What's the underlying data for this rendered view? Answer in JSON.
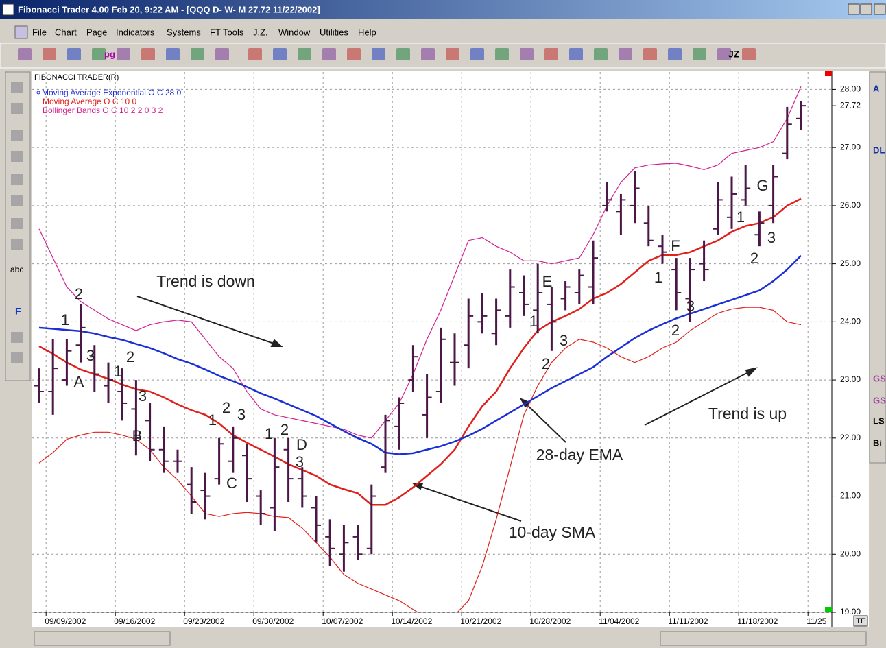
{
  "window": {
    "title": "Fibonacci Trader 4.00 Feb 20,  9:22 AM - [QQQ D- W- M 27.72 11/22/2002]",
    "menu": [
      "File",
      "Chart",
      "Page",
      "Indicators",
      "Systems",
      "FT Tools",
      "J.Z.",
      "Window",
      "Utilities",
      "Help"
    ],
    "toolbar_texts": [
      "pg",
      "JZ"
    ],
    "left_tools": [
      "abc",
      "F"
    ],
    "right_tools": [
      "A",
      "DL",
      "GS",
      "GS",
      "LS",
      "Bi"
    ],
    "corner_label": "TF"
  },
  "chart_data": {
    "type": "ohlc",
    "title": "FIBONACCI TRADER(R)",
    "categories": [
      null,
      "09/09/2002",
      null,
      null,
      null,
      null,
      "09/16/2002",
      null,
      null,
      null,
      null,
      "09/23/2002",
      null,
      null,
      null,
      null,
      "09/30/2002",
      null,
      null,
      null,
      null,
      "10/07/2002",
      null,
      null,
      null,
      null,
      "10/14/2002",
      null,
      null,
      null,
      null,
      "10/21/2002",
      null,
      null,
      null,
      null,
      "10/28/2002",
      null,
      null,
      null,
      null,
      "11/04/2002",
      null,
      null,
      null,
      null,
      "11/11/2002",
      null,
      null,
      null,
      null,
      "11/18/2002",
      null,
      null,
      null,
      null,
      "11/25"
    ],
    "open": [
      22.9,
      22.8,
      23.0,
      23.6,
      23.4,
      22.9,
      22.8,
      22.5,
      22.3,
      21.8,
      21.6,
      21.2,
      21.1,
      21.3,
      21.6,
      21.7,
      21.0,
      20.8,
      21.8,
      21.3,
      20.8,
      20.3,
      20.0,
      20.3,
      20.1,
      21.5,
      22.2,
      23.0,
      22.4,
      22.8,
      23.3,
      23.6,
      24.0,
      23.8,
      24.1,
      24.5,
      24.2,
      24.3,
      24.4,
      24.5,
      24.6,
      26.0,
      25.9,
      26.0,
      25.7,
      25.3,
      24.9,
      24.4,
      25.0,
      25.6,
      25.8,
      26.1,
      25.5,
      26.0,
      26.9,
      27.5,
      null
    ],
    "high": [
      23.2,
      23.7,
      23.7,
      24.3,
      23.6,
      23.3,
      23.2,
      23.0,
      22.6,
      22.2,
      21.8,
      21.5,
      21.4,
      22.0,
      22.2,
      21.9,
      21.1,
      22.0,
      22.0,
      21.5,
      21.0,
      20.6,
      20.5,
      20.5,
      21.2,
      22.4,
      22.7,
      23.6,
      23.1,
      23.9,
      23.8,
      24.4,
      24.5,
      24.4,
      24.9,
      24.8,
      25.0,
      24.6,
      24.7,
      24.9,
      25.4,
      26.4,
      26.2,
      26.6,
      26.0,
      25.5,
      25.1,
      25.1,
      25.4,
      26.4,
      26.5,
      26.7,
      25.9,
      26.7,
      27.7,
      27.8,
      null
    ],
    "low": [
      22.6,
      22.4,
      22.9,
      23.3,
      22.8,
      22.6,
      22.3,
      21.7,
      21.6,
      21.4,
      21.4,
      20.7,
      20.6,
      21.2,
      21.4,
      20.9,
      20.5,
      20.4,
      20.9,
      20.8,
      20.2,
      19.8,
      19.7,
      19.9,
      20.0,
      21.4,
      21.8,
      22.8,
      22.0,
      22.6,
      22.9,
      23.2,
      23.8,
      23.6,
      23.9,
      24.1,
      23.8,
      23.5,
      24.2,
      24.3,
      24.3,
      25.9,
      25.5,
      25.7,
      25.3,
      25.0,
      24.2,
      24.0,
      24.7,
      25.5,
      25.6,
      26.0,
      25.3,
      25.7,
      26.8,
      27.3,
      null
    ],
    "close": [
      22.8,
      23.2,
      23.5,
      23.9,
      23.1,
      23.0,
      22.6,
      22.0,
      21.8,
      21.6,
      21.6,
      20.9,
      21.0,
      21.9,
      22.0,
      21.3,
      20.7,
      21.5,
      21.3,
      21.0,
      20.5,
      20.1,
      20.2,
      20.0,
      21.0,
      22.3,
      22.6,
      23.4,
      22.7,
      23.7,
      23.3,
      24.1,
      24.1,
      24.2,
      24.6,
      24.3,
      24.5,
      24.0,
      24.6,
      24.8,
      25.1,
      26.1,
      26.1,
      26.3,
      25.4,
      25.2,
      24.5,
      24.9,
      24.9,
      26.1,
      26.2,
      26.3,
      25.7,
      26.5,
      27.4,
      27.72,
      null
    ],
    "bar_color": "#4a1747",
    "series": [
      {
        "name": "Moving Average Exponential O C 28 0",
        "color": "#1a2fd6",
        "values": [
          23.9,
          23.88,
          23.86,
          23.84,
          23.8,
          23.74,
          23.69,
          23.62,
          23.55,
          23.46,
          23.36,
          23.28,
          23.18,
          23.07,
          22.98,
          22.88,
          22.77,
          22.68,
          22.58,
          22.48,
          22.38,
          22.25,
          22.12,
          22.0,
          21.9,
          21.75,
          21.72,
          21.74,
          21.8,
          21.86,
          21.94,
          22.04,
          22.16,
          22.3,
          22.44,
          22.58,
          22.72,
          22.86,
          22.98,
          23.1,
          23.22,
          23.4,
          23.56,
          23.72,
          23.85,
          23.96,
          24.06,
          24.14,
          24.22,
          24.3,
          24.38,
          24.46,
          24.54,
          24.7,
          24.9,
          25.14,
          null
        ]
      },
      {
        "name": "Moving Average O C 10 0",
        "color": "#e0201b",
        "values": [
          23.58,
          23.45,
          23.3,
          23.18,
          23.1,
          23.02,
          22.92,
          22.84,
          22.8,
          22.7,
          22.58,
          22.48,
          22.4,
          22.25,
          22.05,
          21.92,
          21.8,
          21.68,
          21.55,
          21.45,
          21.35,
          21.2,
          21.12,
          21.05,
          20.85,
          20.85,
          20.98,
          21.15,
          21.35,
          21.55,
          21.8,
          22.2,
          22.55,
          22.8,
          23.2,
          23.55,
          23.85,
          24.0,
          24.1,
          24.22,
          24.4,
          24.5,
          24.65,
          24.85,
          25.05,
          25.15,
          25.15,
          25.2,
          25.3,
          25.4,
          25.55,
          25.65,
          25.7,
          25.8,
          26.0,
          26.12,
          null
        ]
      },
      {
        "name": "Bollinger Bands O C 10 2 2 0 3 2",
        "color": "#d4208f",
        "lower_color": "#e0201b",
        "upper": [
          25.6,
          25.1,
          24.6,
          24.35,
          24.2,
          24.05,
          23.95,
          23.85,
          23.95,
          24.0,
          24.03,
          24.0,
          23.7,
          23.4,
          23.2,
          22.8,
          22.5,
          22.4,
          22.35,
          22.3,
          22.25,
          22.2,
          22.15,
          22.05,
          22.0,
          22.3,
          22.6,
          23.1,
          23.7,
          24.2,
          24.8,
          25.4,
          25.45,
          25.3,
          25.2,
          25.05,
          25.05,
          25.0,
          25.05,
          25.1,
          25.5,
          26.0,
          26.4,
          26.65,
          26.7,
          26.72,
          26.73,
          26.68,
          26.62,
          26.7,
          26.9,
          26.95,
          27.0,
          27.1,
          27.5,
          28.05,
          null
        ],
        "lower": [
          21.57,
          21.75,
          21.98,
          22.05,
          22.1,
          22.1,
          22.05,
          21.98,
          21.8,
          21.5,
          21.28,
          21.0,
          20.7,
          20.65,
          20.7,
          20.72,
          20.7,
          20.65,
          20.63,
          20.45,
          20.2,
          19.95,
          19.65,
          19.5,
          19.4,
          19.3,
          19.2,
          19.05,
          18.9,
          18.8,
          18.95,
          19.2,
          19.8,
          20.6,
          21.5,
          22.4,
          22.9,
          23.3,
          23.55,
          23.7,
          23.65,
          23.55,
          23.4,
          23.3,
          23.4,
          23.55,
          23.65,
          23.85,
          24.0,
          24.15,
          24.22,
          24.25,
          24.25,
          24.2,
          24.0,
          23.95,
          null
        ]
      }
    ],
    "ylim": [
      19,
      28.3
    ],
    "yticks": [
      {
        "value": 19,
        "label": "19.00"
      },
      {
        "value": 20,
        "label": "20.00"
      },
      {
        "value": 21,
        "label": "21.00"
      },
      {
        "value": 22,
        "label": "22.00"
      },
      {
        "value": 23,
        "label": "23.00"
      },
      {
        "value": 24,
        "label": "24.00"
      },
      {
        "value": 25,
        "label": "25.00"
      },
      {
        "value": 26,
        "label": "26.00"
      },
      {
        "value": 27,
        "label": "27.00"
      },
      {
        "value": 28,
        "label": "28.00"
      }
    ],
    "last_price": {
      "value": 27.72,
      "label": "27.72"
    },
    "grid": true,
    "annotations": [
      "Trend is down",
      "Trend is up",
      "28-day EMA",
      "10-day SMA",
      "A",
      "B",
      "C",
      "D",
      "E",
      "F",
      "G",
      "2",
      "1",
      "3",
      "2",
      "1",
      "3",
      "1",
      "2",
      "3",
      "1",
      "2",
      "3",
      "1",
      "3",
      "2",
      "1",
      "3",
      "2",
      "1",
      "3",
      "2"
    ]
  }
}
